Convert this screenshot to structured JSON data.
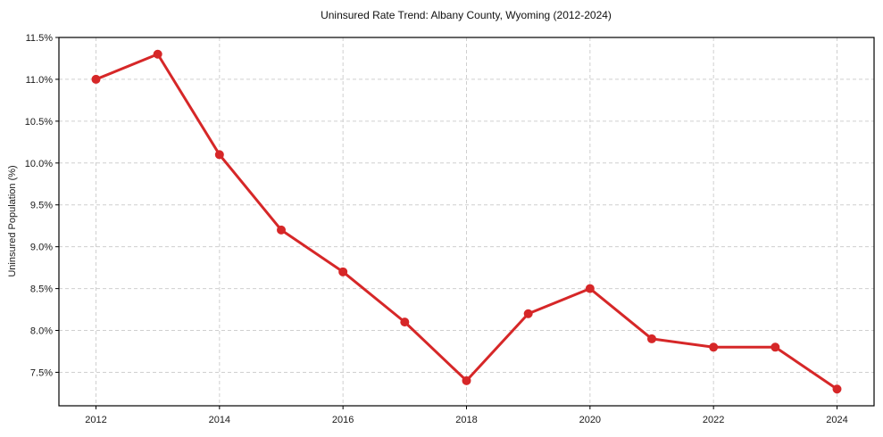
{
  "chart_data": {
    "type": "line",
    "title": "Uninsured Rate Trend: Albany County, Wyoming (2012-2024)",
    "xlabel": "",
    "ylabel": "Uninsured Population (%)",
    "x": [
      2012,
      2013,
      2014,
      2015,
      2016,
      2017,
      2018,
      2019,
      2020,
      2021,
      2022,
      2023,
      2024
    ],
    "series": [
      {
        "name": "Uninsured rate",
        "values": [
          11.0,
          11.3,
          10.1,
          9.2,
          8.7,
          8.1,
          7.4,
          8.2,
          8.5,
          7.9,
          7.8,
          7.8,
          7.3
        ],
        "color": "#d62728",
        "marker": "circle"
      }
    ],
    "xlim": [
      2011.4,
      2024.6
    ],
    "ylim": [
      7.1,
      11.5
    ],
    "xticks": [
      2012,
      2014,
      2016,
      2018,
      2020,
      2022,
      2024
    ],
    "xtick_labels": [
      "2012",
      "2014",
      "2016",
      "2018",
      "2020",
      "2022",
      "2024"
    ],
    "yticks": [
      7.5,
      8.0,
      8.5,
      9.0,
      9.5,
      10.0,
      10.5,
      11.0,
      11.5
    ],
    "ytick_labels": [
      "7.5%",
      "8.0%",
      "8.5%",
      "9.0%",
      "9.5%",
      "10.0%",
      "10.5%",
      "11.0%",
      "11.5%"
    ],
    "grid": true,
    "grid_style": "dashed",
    "grid_color": "#cfcfcf",
    "spine_color": "#000000",
    "background": "#ffffff",
    "legend": "none"
  }
}
